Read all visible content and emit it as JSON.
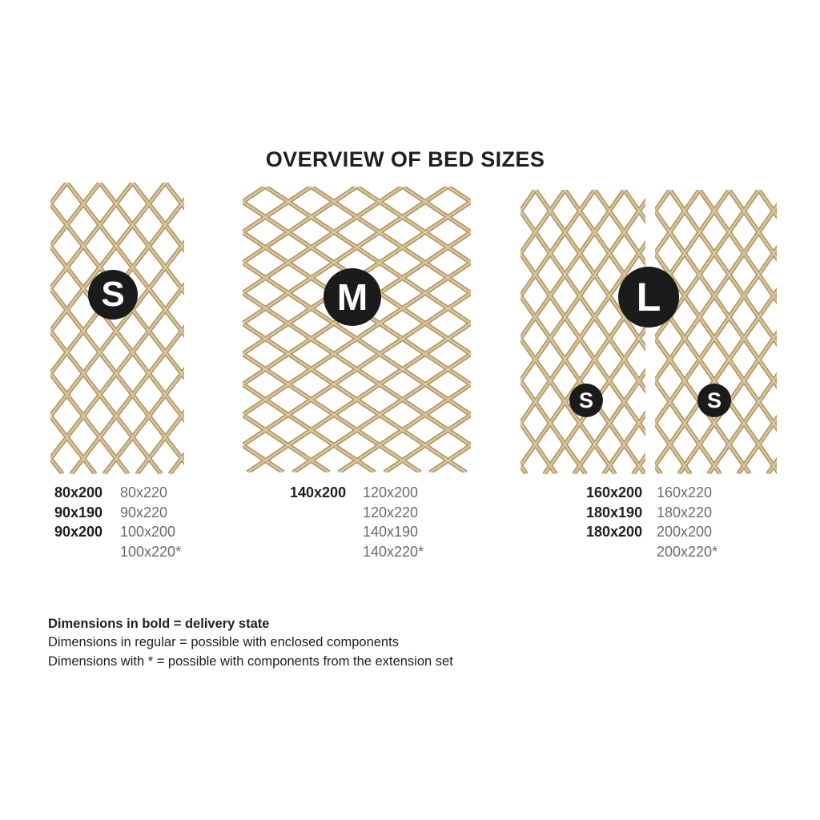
{
  "title": "OVERVIEW OF BED SIZES",
  "colors": {
    "background": "#ffffff",
    "lattice_dark": "#a98e5e",
    "lattice_mid": "#c3a87a",
    "lattice_light": "#dcc9a0",
    "badge_bg": "#1b1b1b",
    "badge_text": "#ffffff",
    "text_bold": "#1f1f1f",
    "text_regular": "#6b6b6b"
  },
  "beds": [
    {
      "badge": "S",
      "bold_sizes": [
        "80x200",
        "90x190",
        "90x200"
      ],
      "regular_sizes": [
        "80x220",
        "90x220",
        "100x200",
        "100x220*"
      ]
    },
    {
      "badge": "M",
      "bold_sizes": [
        "140x200"
      ],
      "regular_sizes": [
        "120x200",
        "120x220",
        "140x190",
        "140x220*"
      ]
    },
    {
      "badge": "L",
      "sub_badges": [
        "S",
        "S"
      ],
      "bold_sizes": [
        "160x200",
        "180x190",
        "180x200"
      ],
      "regular_sizes": [
        "160x220",
        "180x220",
        "200x200",
        "200x220*"
      ]
    }
  ],
  "legend": [
    {
      "text": "Dimensions in bold = delivery state",
      "style": "bold"
    },
    {
      "text": "Dimensions in regular = possible with enclosed components",
      "style": "regular"
    },
    {
      "text": "Dimensions with * = possible with components from the extension set",
      "style": "regular"
    }
  ]
}
